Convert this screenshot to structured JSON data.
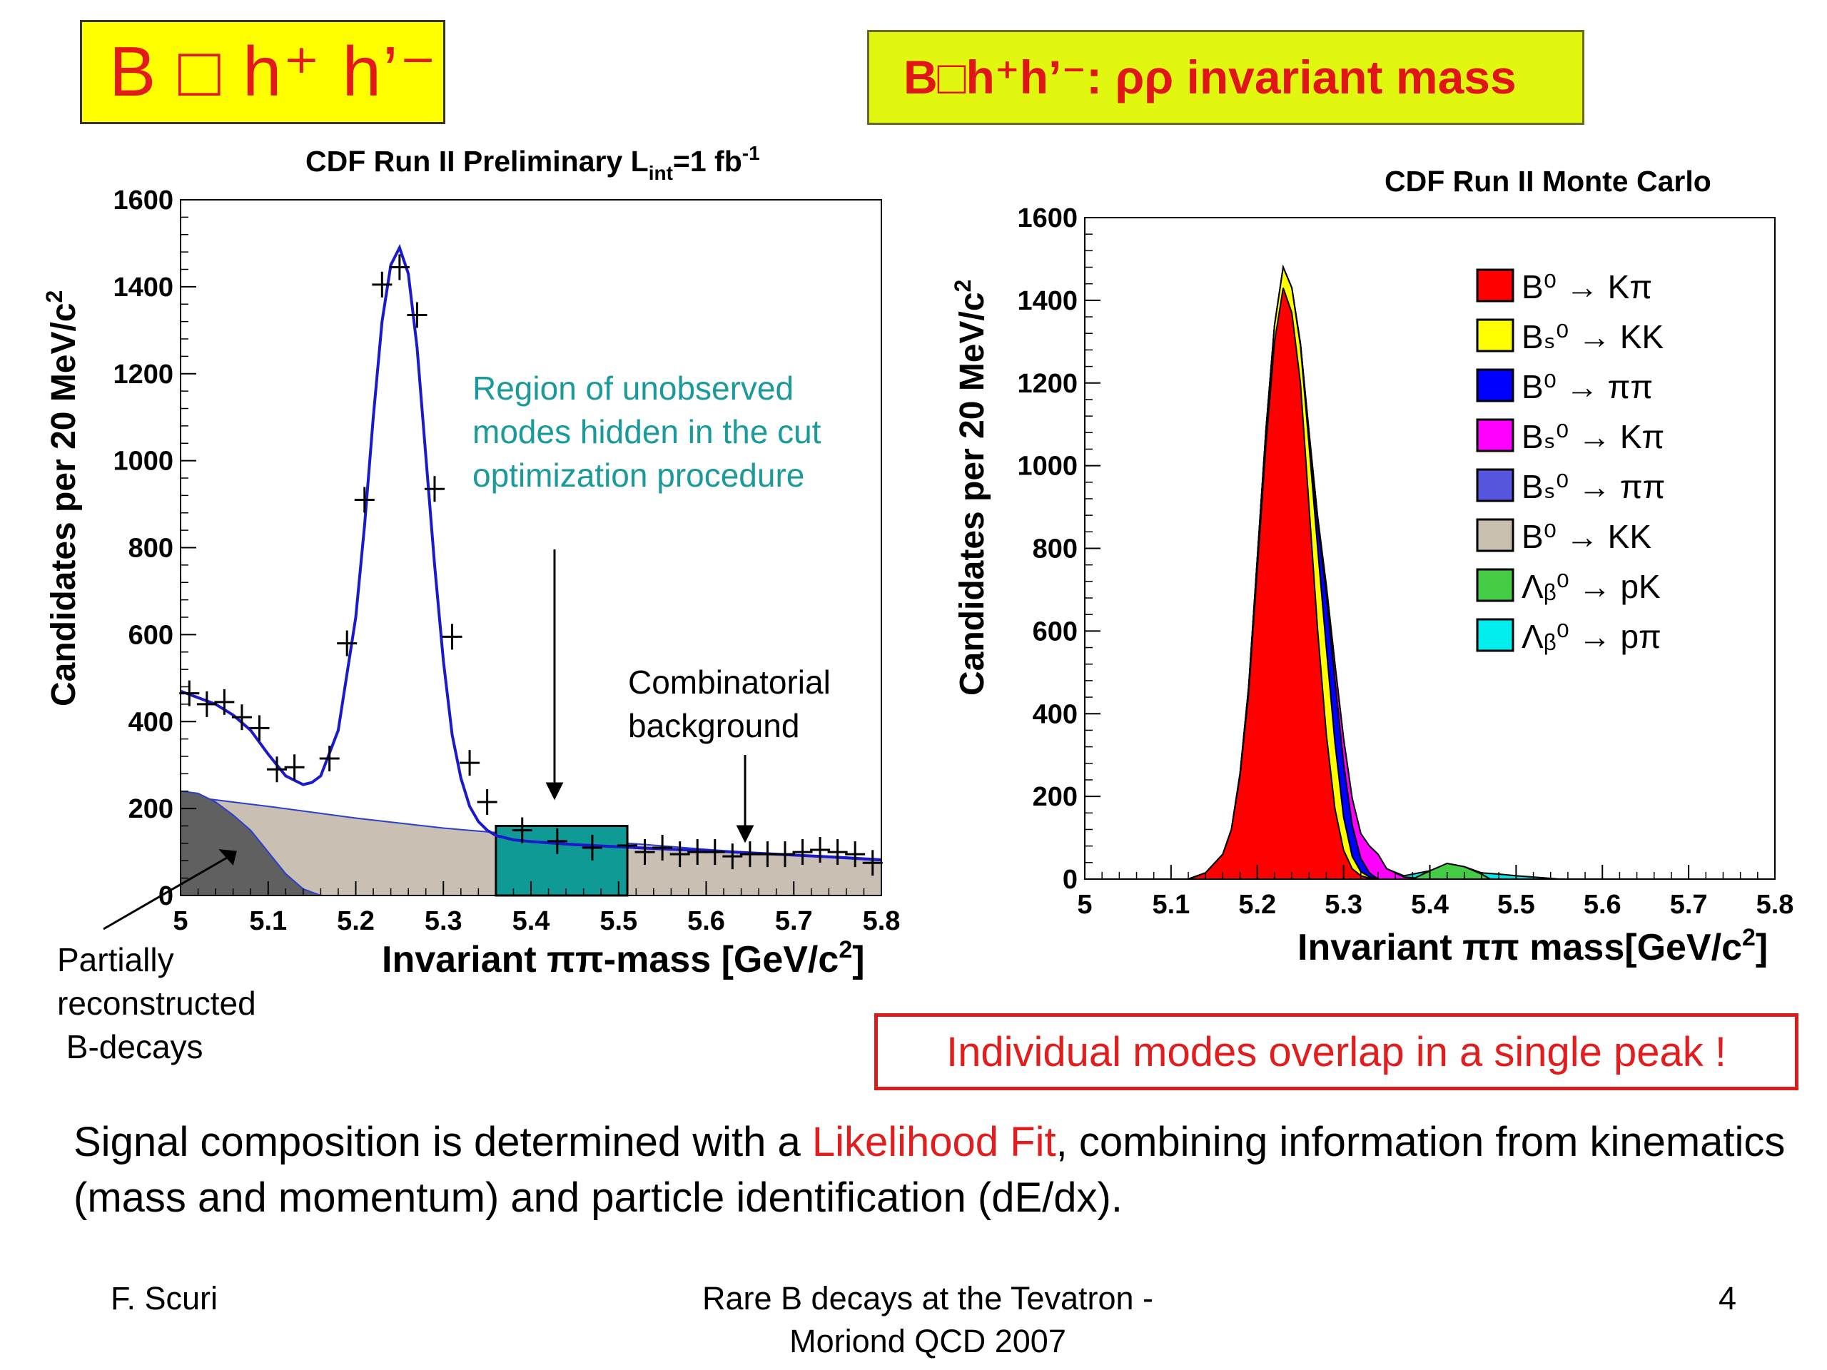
{
  "slide": {
    "title_left": "B □ h⁺ h’⁻",
    "title_right": "B□h⁺h’⁻: ρρ invariant mass",
    "box_text": "Individual modes overlap in a single peak !",
    "bottom_text_1": "Signal composition is determined with a ",
    "bottom_highlight": "Likelihood Fit",
    "bottom_text_2": ", combining information from kinematics (mass and momentum) and particle identification (dE/dx).",
    "footer_left": "F. Scuri",
    "footer_center_1": "Rare B decays at the Tevatron -",
    "footer_center_2": "Moriond QCD 2007",
    "footer_right": "4",
    "colors": {
      "title_bg": "#ffff00",
      "accent_red": "#e11d1d",
      "teal_annotation": "#1a9a9a"
    }
  },
  "chart_data": [
    {
      "type": "scatter",
      "title_main": "CDF Run II  Preliminary L",
      "title_sub": "int",
      "title_mid": "=1 fb",
      "title_sup": "-1",
      "xlabel": "Invariant ππ-mass [GeV/c",
      "xlabel_sup": "2",
      "xlabel_end": "]",
      "ylabel": "Candidates per 20 MeV/c",
      "ylabel_sup": "2",
      "xlim": [
        5.0,
        5.8
      ],
      "ylim": [
        0,
        1600
      ],
      "x_ticks": [
        "5",
        "5.1",
        "5.2",
        "5.3",
        "5.4",
        "5.5",
        "5.6",
        "5.7",
        "5.8"
      ],
      "y_ticks": [
        "0",
        "200",
        "400",
        "600",
        "800",
        "1000",
        "1200",
        "1400",
        "1600"
      ],
      "data_points": {
        "x": [
          5.01,
          5.03,
          5.05,
          5.07,
          5.09,
          5.11,
          5.13,
          5.17,
          5.19,
          5.21,
          5.23,
          5.25,
          5.27,
          5.29,
          5.31,
          5.33,
          5.35,
          5.39,
          5.43,
          5.47,
          5.51,
          5.53,
          5.55,
          5.57,
          5.59,
          5.61,
          5.63,
          5.65,
          5.67,
          5.69,
          5.71,
          5.73,
          5.75,
          5.77,
          5.79
        ],
        "y": [
          465,
          440,
          445,
          410,
          385,
          290,
          295,
          315,
          580,
          910,
          1405,
          1445,
          1335,
          935,
          595,
          305,
          215,
          150,
          125,
          110,
          115,
          100,
          110,
          95,
          100,
          100,
          90,
          95,
          95,
          95,
          100,
          105,
          100,
          95,
          75
        ]
      },
      "fit_curve": {
        "x": [
          5.0,
          5.02,
          5.04,
          5.06,
          5.08,
          5.1,
          5.12,
          5.14,
          5.15,
          5.16,
          5.18,
          5.2,
          5.21,
          5.22,
          5.23,
          5.24,
          5.25,
          5.26,
          5.27,
          5.28,
          5.29,
          5.3,
          5.31,
          5.32,
          5.33,
          5.34,
          5.35,
          5.36,
          5.38,
          5.4,
          5.45,
          5.5,
          5.55,
          5.6,
          5.65,
          5.7,
          5.75,
          5.8
        ],
        "y": [
          470,
          455,
          440,
          415,
          380,
          325,
          275,
          255,
          260,
          275,
          380,
          640,
          850,
          1100,
          1320,
          1450,
          1490,
          1430,
          1260,
          1010,
          760,
          540,
          370,
          270,
          205,
          170,
          150,
          138,
          128,
          124,
          117,
          112,
          107,
          103,
          98,
          93,
          88,
          82
        ]
      },
      "partially_reconstructed": {
        "x": [
          5.0,
          5.02,
          5.04,
          5.06,
          5.08,
          5.1,
          5.12,
          5.14,
          5.16
        ],
        "y": [
          240,
          235,
          215,
          185,
          150,
          100,
          50,
          15,
          0
        ]
      },
      "combinatorial_background": {
        "x": [
          5.0,
          5.1,
          5.2,
          5.3,
          5.4,
          5.5,
          5.6,
          5.7,
          5.8
        ],
        "y": [
          230,
          205,
          178,
          155,
          138,
          122,
          106,
          92,
          80
        ]
      },
      "hidden_region": {
        "x_range": [
          5.36,
          5.51
        ],
        "y_top": 160
      },
      "annotations": {
        "region_text": [
          "Region of unobserved",
          "modes hidden in the cut",
          "optimization procedure"
        ],
        "combinatorial_text": [
          "Combinatorial",
          "background"
        ],
        "partial_text": [
          "Partially",
          "reconstructed",
          " B-decays"
        ]
      }
    },
    {
      "type": "area",
      "title": "CDF Run II Monte Carlo",
      "xlabel": "Invariant ππ mass[GeV/c",
      "xlabel_sup": "2",
      "xlabel_end": "]",
      "ylabel": "Candidates per 20 MeV/c",
      "ylabel_sup": "2",
      "xlim": [
        5.0,
        5.8
      ],
      "ylim": [
        0,
        1600
      ],
      "x_ticks": [
        "5",
        "5.1",
        "5.2",
        "5.3",
        "5.4",
        "5.5",
        "5.6",
        "5.7",
        "5.8"
      ],
      "y_ticks": [
        "0",
        "200",
        "400",
        "600",
        "800",
        "1000",
        "1200",
        "1400",
        "1600"
      ],
      "legend_position": "top-right",
      "legend": [
        {
          "label": "B⁰ → Kπ",
          "color": "#ff0000"
        },
        {
          "label": "Bₛ⁰ → KK",
          "color": "#ffff00"
        },
        {
          "label": "B⁰ → ππ",
          "color": "#0000ff"
        },
        {
          "label": "Bₛ⁰ → Kπ",
          "color": "#ff00ff"
        },
        {
          "label": "Bₛ⁰ → ππ",
          "color": "#5555dd"
        },
        {
          "label": "B⁰ → KK",
          "color": "#c8bfb0"
        },
        {
          "label": "Λᵦ⁰ → pK",
          "color": "#44cc44"
        },
        {
          "label": "Λᵦ⁰ → pπ",
          "color": "#00eeee"
        }
      ],
      "stacked_cumulative": {
        "x": [
          5.12,
          5.14,
          5.16,
          5.17,
          5.18,
          5.19,
          5.2,
          5.21,
          5.22,
          5.23,
          5.24,
          5.25,
          5.26,
          5.27,
          5.28,
          5.29,
          5.3,
          5.31,
          5.32,
          5.33,
          5.34,
          5.35,
          5.37,
          5.4,
          5.42,
          5.44,
          5.46,
          5.48,
          5.5,
          5.52,
          5.55
        ],
        "kpi": [
          0,
          15,
          60,
          120,
          250,
          450,
          750,
          1050,
          1300,
          1430,
          1370,
          1200,
          900,
          600,
          350,
          170,
          70,
          25,
          8,
          2,
          0,
          0,
          0,
          0,
          0,
          0,
          0,
          0,
          0,
          0,
          0
        ],
        "kk": [
          0,
          15,
          60,
          120,
          255,
          465,
          775,
          1085,
          1340,
          1480,
          1430,
          1290,
          1050,
          800,
          560,
          330,
          150,
          55,
          18,
          5,
          0,
          0,
          0,
          0,
          0,
          0,
          0,
          0,
          0,
          0,
          0
        ],
        "pipi": [
          0,
          15,
          60,
          120,
          255,
          465,
          775,
          1085,
          1340,
          1480,
          1430,
          1295,
          1075,
          860,
          690,
          480,
          280,
          130,
          50,
          15,
          0,
          0,
          0,
          0,
          0,
          0,
          0,
          0,
          0,
          0,
          0
        ],
        "bskpi": [
          0,
          15,
          60,
          120,
          255,
          465,
          775,
          1085,
          1340,
          1480,
          1430,
          1295,
          1080,
          875,
          710,
          520,
          340,
          195,
          110,
          80,
          60,
          25,
          5,
          0,
          0,
          0,
          0,
          0,
          0,
          0,
          0
        ],
        "lambda": [
          0,
          15,
          60,
          120,
          255,
          465,
          775,
          1085,
          1340,
          1480,
          1430,
          1295,
          1080,
          875,
          710,
          520,
          340,
          195,
          110,
          80,
          60,
          25,
          8,
          20,
          35,
          30,
          15,
          12,
          8,
          5,
          0
        ]
      }
    }
  ]
}
